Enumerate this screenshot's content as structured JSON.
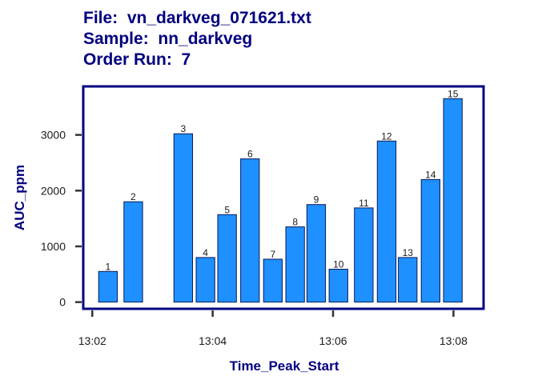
{
  "header": {
    "file_line": "File:  vn_darkveg_071621.txt",
    "sample_line": "Sample:  nn_darkveg",
    "order_line": "Order Run:  7"
  },
  "chart_data": {
    "type": "bar",
    "title": "File:  vn_darkveg_071621.txt",
    "subtitle": "Sample:  nn_darkveg / Order Run:  7",
    "xlabel": "Time_Peak_Start",
    "ylabel": "AUC_ppm",
    "x_unit": "minutes after 13:00",
    "xlim": [
      1.85,
      8.5
    ],
    "ylim": [
      -120,
      3870
    ],
    "x_ticks": [
      {
        "value": 2,
        "label": "13:02"
      },
      {
        "value": 4,
        "label": "13:04"
      },
      {
        "value": 6,
        "label": "13:06"
      },
      {
        "value": 8,
        "label": "13:08"
      }
    ],
    "y_ticks": [
      0,
      1000,
      2000,
      3000
    ],
    "bar_width": 0.31,
    "bar_color": "#1E90FF",
    "bar_edge_color": "#0a1a5a",
    "frame_color": "#000080",
    "bars": [
      {
        "label": "1",
        "x": 2.26,
        "value": 550
      },
      {
        "label": "2",
        "x": 2.68,
        "value": 1800
      },
      {
        "label": "3",
        "x": 3.51,
        "value": 3020
      },
      {
        "label": "4",
        "x": 3.88,
        "value": 800
      },
      {
        "label": "5",
        "x": 4.24,
        "value": 1570
      },
      {
        "label": "6",
        "x": 4.62,
        "value": 2570
      },
      {
        "label": "7",
        "x": 5.0,
        "value": 770
      },
      {
        "label": "8",
        "x": 5.37,
        "value": 1350
      },
      {
        "label": "9",
        "x": 5.72,
        "value": 1750
      },
      {
        "label": "10",
        "x": 6.09,
        "value": 590
      },
      {
        "label": "11",
        "x": 6.51,
        "value": 1690
      },
      {
        "label": "12",
        "x": 6.89,
        "value": 2890
      },
      {
        "label": "13",
        "x": 7.24,
        "value": 800
      },
      {
        "label": "14",
        "x": 7.62,
        "value": 2200
      },
      {
        "label": "15",
        "x": 7.99,
        "value": 3650
      }
    ]
  }
}
